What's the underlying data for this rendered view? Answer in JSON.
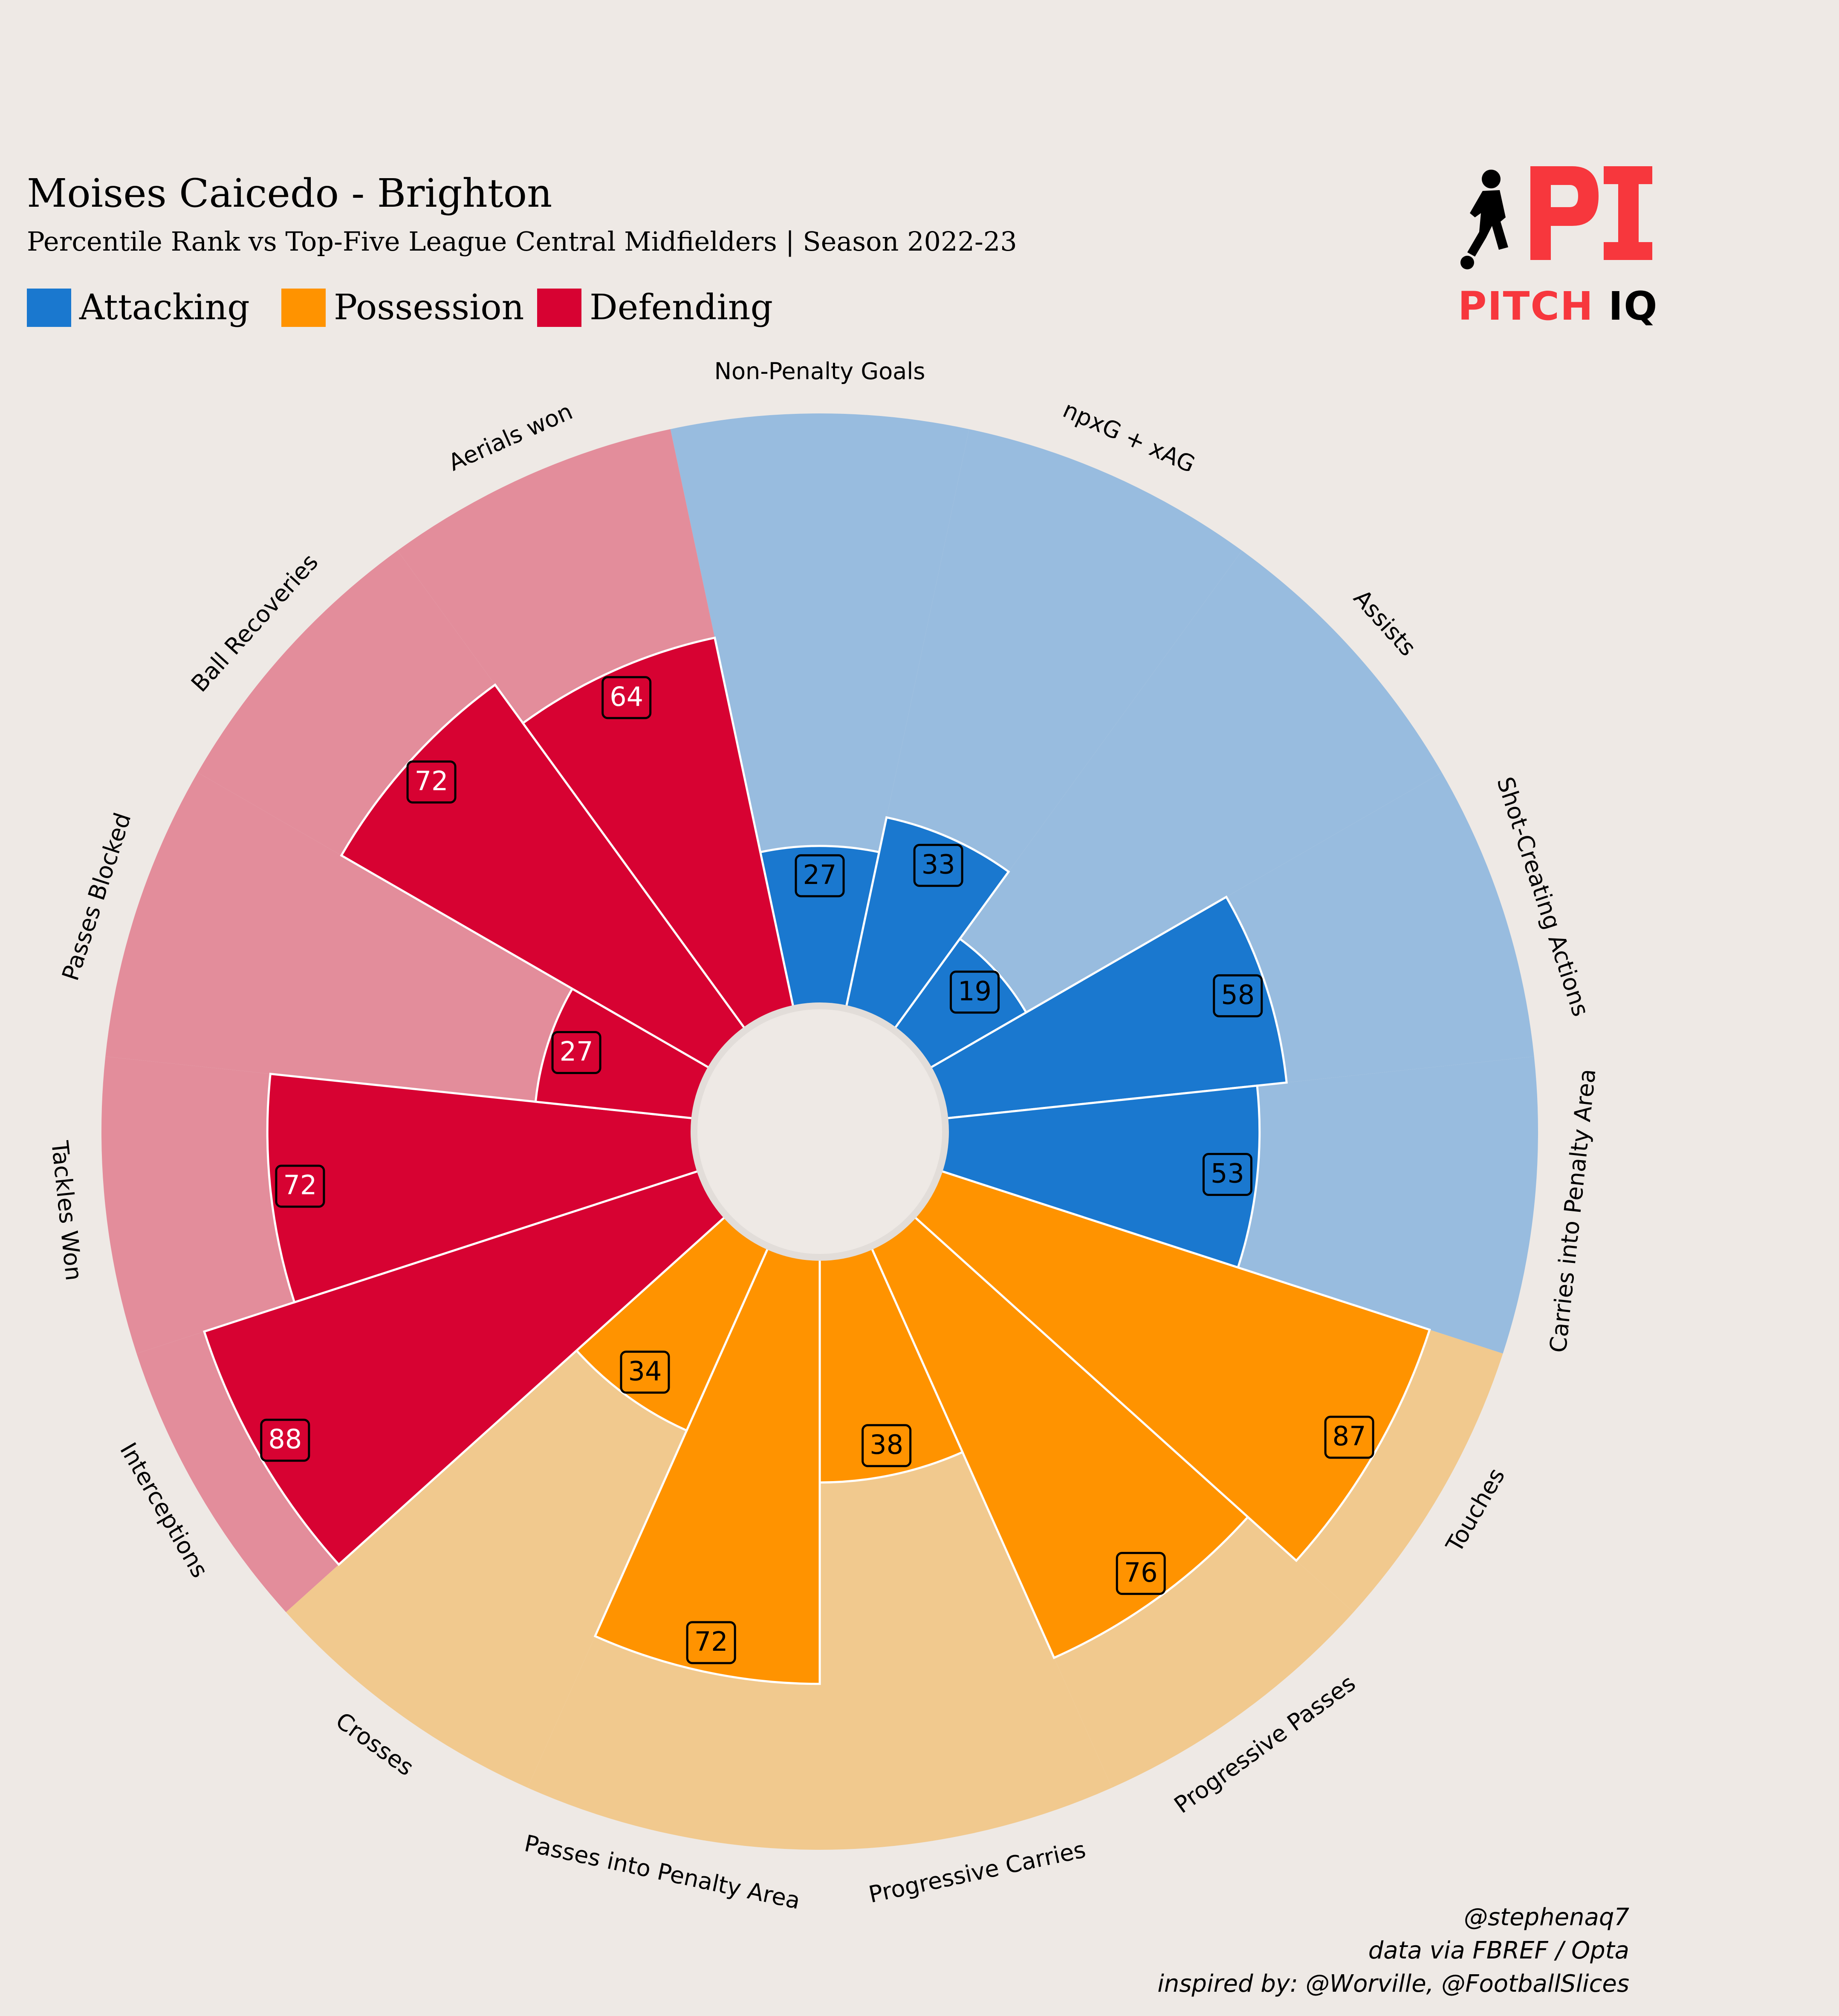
{
  "header": {
    "title": "Moises Caicedo - Brighton",
    "subtitle": "Percentile Rank vs Top-Five League Central Midfielders | Season 2022-23"
  },
  "legend": {
    "items": [
      {
        "label": "Attacking",
        "color": "#1a78cf"
      },
      {
        "label": "Possession",
        "color": "#ff9300"
      },
      {
        "label": "Defending",
        "color": "#d70232"
      }
    ]
  },
  "logo": {
    "mark": "PI",
    "text_part1": "PITCH",
    "text_part2": "IQ",
    "icon": "player-silhouette-icon"
  },
  "credits": {
    "line1": "@stephenaq7",
    "line2": "data via FBREF / Opta",
    "line3": "inspired by: @Worville, @FootballSlices"
  },
  "chart_data": {
    "type": "pizza",
    "value_range": [
      0,
      100
    ],
    "slices": [
      {
        "param": "Non-Penalty Goals",
        "value": 27,
        "group": "Attacking"
      },
      {
        "param": "npxG + xAG",
        "value": 33,
        "group": "Attacking"
      },
      {
        "param": "Assists",
        "value": 19,
        "group": "Attacking"
      },
      {
        "param": "Shot-Creating Actions",
        "value": 58,
        "group": "Attacking"
      },
      {
        "param": "Carries into Penalty Area",
        "value": 53,
        "group": "Attacking"
      },
      {
        "param": "Touches",
        "value": 87,
        "group": "Possession"
      },
      {
        "param": "Progressive Passes",
        "value": 76,
        "group": "Possession"
      },
      {
        "param": "Progressive Carries",
        "value": 38,
        "group": "Possession"
      },
      {
        "param": "Passes into Penalty Area",
        "value": 72,
        "group": "Possession"
      },
      {
        "param": "Crosses",
        "value": 34,
        "group": "Possession"
      },
      {
        "param": "Interceptions",
        "value": 88,
        "group": "Defending"
      },
      {
        "param": "Tackles Won",
        "value": 72,
        "group": "Defending"
      },
      {
        "param": "Passes Blocked",
        "value": 27,
        "group": "Defending"
      },
      {
        "param": "Ball Recoveries",
        "value": 72,
        "group": "Defending"
      },
      {
        "param": "Aerials won",
        "value": 64,
        "group": "Defending"
      }
    ],
    "group_colors": {
      "Attacking": "#1a78cf",
      "Possession": "#ff9300",
      "Defending": "#d70232"
    },
    "background_colors": {
      "Attacking": "#98bcdf",
      "Possession": "#f1c98e",
      "Defending": "#e38d9b"
    },
    "value_text_colors": {
      "Attacking": "#000000",
      "Possession": "#000000",
      "Defending": "#ffffff"
    }
  }
}
